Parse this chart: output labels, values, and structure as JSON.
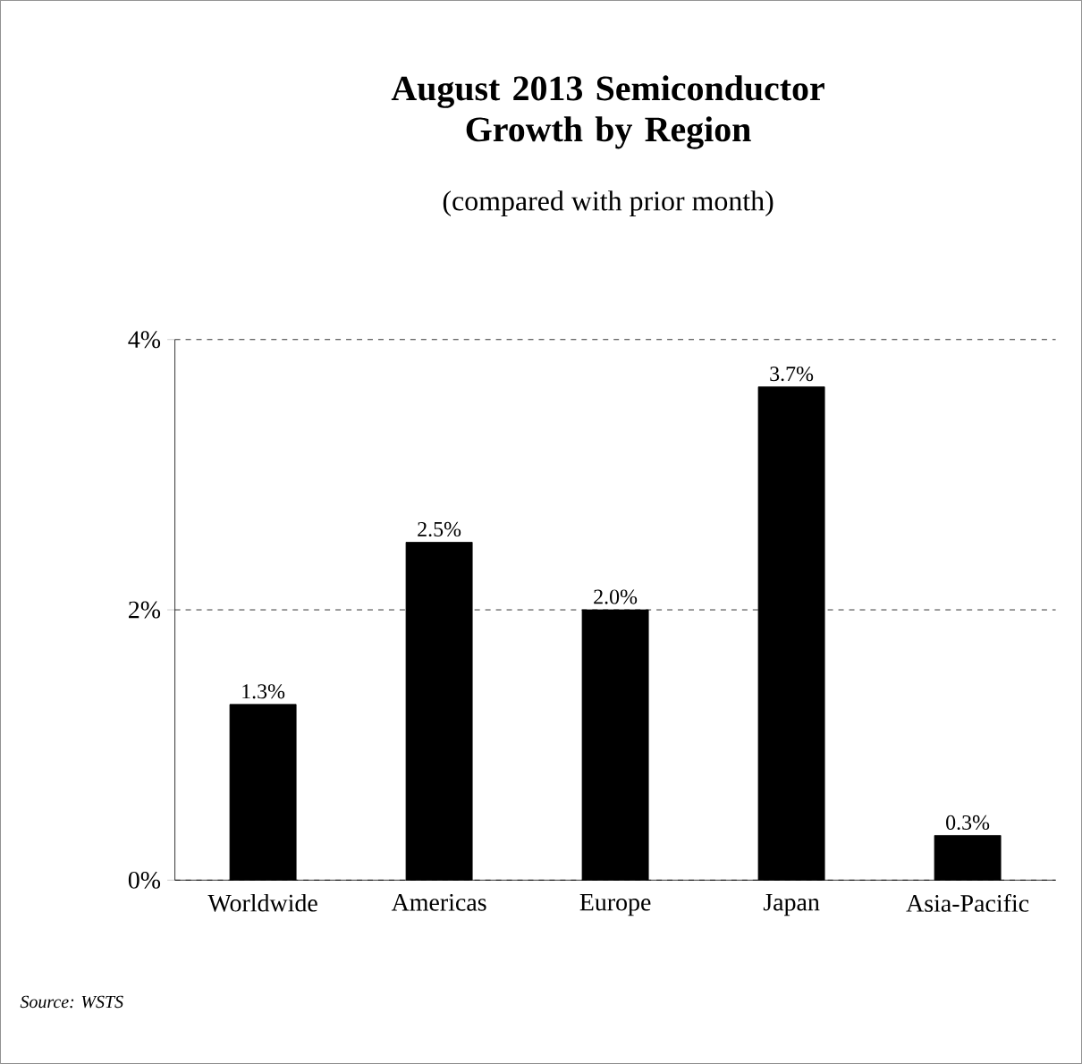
{
  "chart_data": {
    "type": "bar",
    "title": "August 2013 Semiconductor Growth by Region",
    "subtitle": "(compared with prior month)",
    "categories": [
      "Worldwide",
      "Americas",
      "Europe",
      "Japan",
      "Asia-Pacific"
    ],
    "values": [
      1.3,
      2.5,
      2.0,
      3.65,
      0.33
    ],
    "value_labels": [
      "1.3%",
      "2.5%",
      "2.0%",
      "3.7%",
      "0.3%"
    ],
    "color": "#000000",
    "ylim": [
      0,
      4
    ],
    "yticks": [
      {
        "value": 0,
        "label": "0%"
      },
      {
        "value": 2,
        "label": "2%"
      },
      {
        "value": 4,
        "label": "4%"
      }
    ],
    "grid": "y",
    "annotations": [
      "*Source: WSTS*"
    ]
  }
}
